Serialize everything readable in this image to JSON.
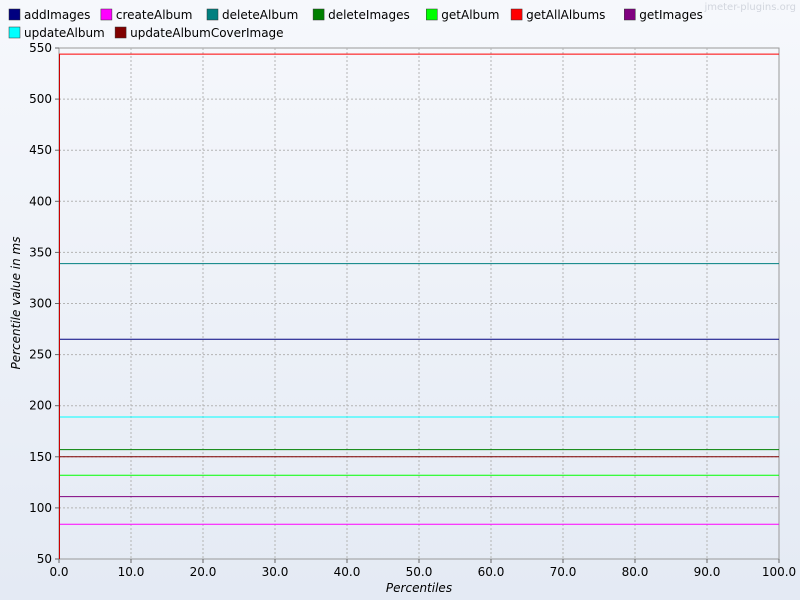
{
  "watermark": "jmeter-plugins.org",
  "chart_data": {
    "type": "line",
    "xlabel": "Percentiles",
    "ylabel": "Percentile value in ms",
    "xlim": [
      0,
      100
    ],
    "ylim": [
      50,
      550
    ],
    "x_ticks": [
      "0.0",
      "10.0",
      "20.0",
      "30.0",
      "40.0",
      "50.0",
      "60.0",
      "70.0",
      "80.0",
      "90.0",
      "100.0"
    ],
    "y_ticks": [
      "50",
      "100",
      "150",
      "200",
      "250",
      "300",
      "350",
      "400",
      "450",
      "500",
      "550"
    ],
    "grid": true,
    "legend_position": "top",
    "series": [
      {
        "name": "addImages",
        "color": "#000080",
        "points": [
          [
            0,
            265
          ],
          [
            100,
            265
          ]
        ]
      },
      {
        "name": "createAlbum",
        "color": "#ff00ff",
        "points": [
          [
            0,
            84
          ],
          [
            100,
            84
          ]
        ]
      },
      {
        "name": "deleteAlbum",
        "color": "#008080",
        "points": [
          [
            0,
            339
          ],
          [
            100,
            339
          ]
        ]
      },
      {
        "name": "deleteImages",
        "color": "#008000",
        "points": [
          [
            0,
            157
          ],
          [
            100,
            157
          ]
        ]
      },
      {
        "name": "getAlbum",
        "color": "#00ff00",
        "points": [
          [
            0,
            132
          ],
          [
            100,
            132
          ]
        ]
      },
      {
        "name": "getAllAlbums",
        "color": "#ff0000",
        "points": [
          [
            0,
            544
          ],
          [
            100,
            544
          ]
        ]
      },
      {
        "name": "getImages",
        "color": "#800080",
        "points": [
          [
            0,
            111
          ],
          [
            100,
            111
          ]
        ]
      },
      {
        "name": "updateAlbum",
        "color": "#00ffff",
        "points": [
          [
            0,
            189
          ],
          [
            100,
            189
          ]
        ]
      },
      {
        "name": "updateAlbumCoverImage",
        "color": "#800000",
        "points": [
          [
            0,
            150
          ],
          [
            100,
            150
          ]
        ]
      }
    ]
  }
}
